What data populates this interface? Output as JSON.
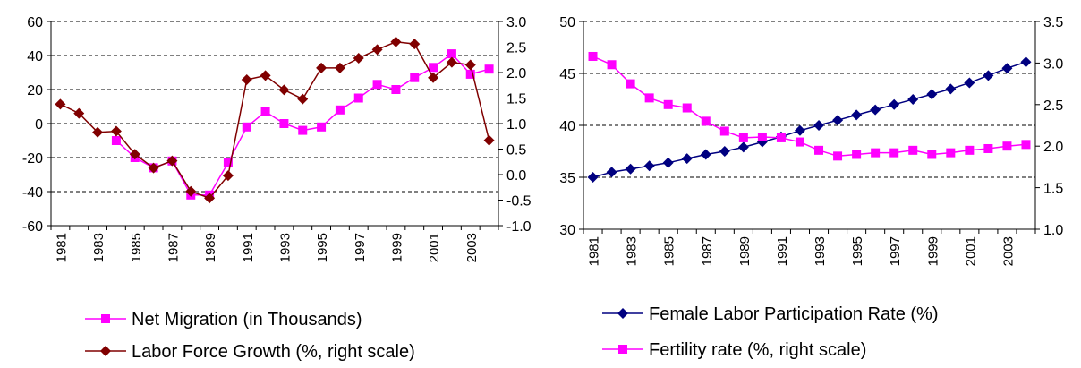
{
  "chart_data": [
    {
      "type": "line",
      "x": [
        1981,
        1982,
        1983,
        1984,
        1985,
        1986,
        1987,
        1988,
        1989,
        1990,
        1991,
        1992,
        1993,
        1994,
        1995,
        1996,
        1997,
        1998,
        1999,
        2000,
        2001,
        2002,
        2003,
        2004
      ],
      "xtick_labels": [
        "1981",
        "1983",
        "1985",
        "1987",
        "1989",
        "1991",
        "1993",
        "1995",
        "1997",
        "1999",
        "2001",
        "2003"
      ],
      "ylim": [
        -60,
        60
      ],
      "yticks": [
        "-60",
        "-40",
        "-20",
        "0",
        "20",
        "40",
        "60"
      ],
      "y2lim": [
        -1.0,
        3.0
      ],
      "y2ticks": [
        "-1.0",
        "-0.5",
        "0.0",
        "0.5",
        "1.0",
        "1.5",
        "2.0",
        "2.5",
        "3.0"
      ],
      "grid": "horizontal dashed",
      "legend_position": "bottom",
      "series": [
        {
          "name": "Net Migration (in Thousands)",
          "axis": "left",
          "color": "#ff00ff",
          "marker": "square",
          "values": [
            null,
            null,
            null,
            -10,
            -20,
            -26,
            -22,
            -42,
            -42,
            -23,
            -2,
            7,
            0,
            -4,
            -2,
            8,
            15,
            23,
            20,
            27,
            33,
            41,
            29,
            32
          ]
        },
        {
          "name": "Labor Force Growth (%, right scale)",
          "axis": "right",
          "color": "#800000",
          "marker": "diamond",
          "values": [
            1.38,
            1.2,
            0.83,
            0.85,
            0.4,
            0.13,
            0.27,
            -0.33,
            -0.46,
            -0.02,
            1.86,
            1.94,
            1.66,
            1.48,
            2.09,
            2.09,
            2.28,
            2.45,
            2.6,
            2.56,
            1.9,
            2.2,
            2.15,
            0.67
          ]
        }
      ]
    },
    {
      "type": "line",
      "x": [
        1981,
        1982,
        1983,
        1984,
        1985,
        1986,
        1987,
        1988,
        1989,
        1990,
        1991,
        1992,
        1993,
        1994,
        1995,
        1996,
        1997,
        1998,
        1999,
        2000,
        2001,
        2002,
        2003,
        2004
      ],
      "xtick_labels": [
        "1981",
        "1983",
        "1985",
        "1987",
        "1989",
        "1991",
        "1993",
        "1995",
        "1997",
        "1999",
        "2001",
        "2003"
      ],
      "ylim": [
        30,
        50
      ],
      "yticks": [
        "30",
        "35",
        "40",
        "45",
        "50"
      ],
      "y2lim": [
        1.0,
        3.5
      ],
      "y2ticks": [
        "1.0",
        "1.5",
        "2.0",
        "2.5",
        "3.0",
        "3.5"
      ],
      "grid": "horizontal dashed",
      "legend_position": "bottom",
      "series": [
        {
          "name": "Female Labor Participation Rate (%)",
          "axis": "left",
          "color": "#000080",
          "marker": "diamond",
          "values": [
            35.0,
            35.5,
            35.8,
            36.1,
            36.4,
            36.8,
            37.2,
            37.5,
            37.9,
            38.4,
            38.9,
            39.5,
            40.0,
            40.5,
            41.0,
            41.5,
            42.0,
            42.5,
            43.0,
            43.5,
            44.1,
            44.8,
            45.5,
            46.1
          ]
        },
        {
          "name": "Fertility rate (%, right scale)",
          "axis": "right",
          "color": "#ff00ff",
          "marker": "square",
          "values": [
            3.08,
            2.98,
            2.75,
            2.58,
            2.5,
            2.46,
            2.3,
            2.18,
            2.1,
            2.11,
            2.1,
            2.05,
            1.95,
            1.88,
            1.9,
            1.92,
            1.92,
            1.95,
            1.9,
            1.92,
            1.95,
            1.97,
            2.0,
            2.02
          ]
        }
      ]
    }
  ]
}
